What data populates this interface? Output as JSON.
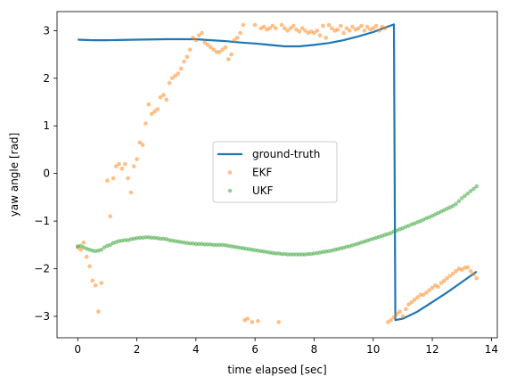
{
  "chart_data": {
    "type": "line",
    "xlabel": "time elapsed [sec]",
    "ylabel": "yaw angle [rad]",
    "xlim": [
      -0.7,
      14.2
    ],
    "ylim": [
      -3.45,
      3.4
    ],
    "xticks": [
      0,
      2,
      4,
      6,
      8,
      10,
      12,
      14
    ],
    "yticks": [
      -3,
      -2,
      -1,
      0,
      1,
      2,
      3
    ],
    "grid": false,
    "legend_position": "center",
    "series": [
      {
        "name": "ground-truth",
        "style": "line",
        "color": "#1f77b4",
        "points": [
          [
            0.0,
            2.81
          ],
          [
            0.5,
            2.8
          ],
          [
            1.0,
            2.8
          ],
          [
            2.0,
            2.81
          ],
          [
            3.0,
            2.82
          ],
          [
            4.0,
            2.82
          ],
          [
            4.5,
            2.8
          ],
          [
            5.0,
            2.78
          ],
          [
            5.5,
            2.75
          ],
          [
            6.0,
            2.73
          ],
          [
            6.5,
            2.7
          ],
          [
            7.0,
            2.67
          ],
          [
            7.5,
            2.67
          ],
          [
            8.0,
            2.7
          ],
          [
            8.5,
            2.74
          ],
          [
            9.0,
            2.8
          ],
          [
            9.5,
            2.88
          ],
          [
            10.0,
            2.97
          ],
          [
            10.3,
            3.04
          ],
          [
            10.7,
            3.13
          ],
          [
            10.75,
            -3.08
          ],
          [
            11.0,
            -3.05
          ],
          [
            11.5,
            -2.9
          ],
          [
            12.0,
            -2.7
          ],
          [
            12.5,
            -2.5
          ],
          [
            13.0,
            -2.28
          ],
          [
            13.5,
            -2.06
          ]
        ]
      },
      {
        "name": "EKF",
        "style": "markers",
        "color": "#ff7f0e",
        "points": [
          [
            0.0,
            -1.55
          ],
          [
            0.1,
            -1.6
          ],
          [
            0.2,
            -1.45
          ],
          [
            0.3,
            -1.75
          ],
          [
            0.4,
            -1.95
          ],
          [
            0.5,
            -2.25
          ],
          [
            0.6,
            -2.35
          ],
          [
            0.7,
            -2.9
          ],
          [
            0.8,
            -2.3
          ],
          [
            1.0,
            -0.15
          ],
          [
            1.1,
            -0.9
          ],
          [
            1.2,
            -0.1
          ],
          [
            1.3,
            0.15
          ],
          [
            1.4,
            0.2
          ],
          [
            1.5,
            0.1
          ],
          [
            1.6,
            0.2
          ],
          [
            1.7,
            -0.1
          ],
          [
            1.8,
            -0.4
          ],
          [
            1.9,
            0.15
          ],
          [
            2.0,
            0.3
          ],
          [
            2.1,
            0.65
          ],
          [
            2.2,
            0.6
          ],
          [
            2.3,
            1.05
          ],
          [
            2.4,
            1.45
          ],
          [
            2.5,
            1.25
          ],
          [
            2.6,
            1.3
          ],
          [
            2.7,
            1.35
          ],
          [
            2.8,
            1.6
          ],
          [
            2.9,
            1.65
          ],
          [
            3.0,
            1.55
          ],
          [
            3.1,
            1.9
          ],
          [
            3.2,
            2.0
          ],
          [
            3.3,
            2.05
          ],
          [
            3.4,
            2.1
          ],
          [
            3.5,
            2.2
          ],
          [
            3.6,
            2.35
          ],
          [
            3.7,
            2.45
          ],
          [
            3.8,
            2.6
          ],
          [
            3.9,
            2.85
          ],
          [
            4.0,
            2.8
          ],
          [
            4.1,
            2.9
          ],
          [
            4.2,
            2.95
          ],
          [
            4.3,
            2.75
          ],
          [
            4.4,
            2.7
          ],
          [
            4.5,
            2.65
          ],
          [
            4.6,
            2.6
          ],
          [
            4.7,
            2.55
          ],
          [
            4.8,
            2.55
          ],
          [
            4.9,
            2.6
          ],
          [
            5.0,
            2.65
          ],
          [
            5.1,
            2.4
          ],
          [
            5.2,
            2.5
          ],
          [
            5.3,
            2.8
          ],
          [
            5.4,
            2.85
          ],
          [
            5.5,
            2.95
          ],
          [
            5.6,
            3.12
          ],
          [
            5.65,
            -3.08
          ],
          [
            5.75,
            -3.05
          ],
          [
            5.9,
            -3.12
          ],
          [
            6.0,
            3.12
          ],
          [
            6.1,
            -3.1
          ],
          [
            6.2,
            3.05
          ],
          [
            6.3,
            3.08
          ],
          [
            6.4,
            3.02
          ],
          [
            6.5,
            3.05
          ],
          [
            6.6,
            3.1
          ],
          [
            6.7,
            3.05
          ],
          [
            6.8,
            -3.12
          ],
          [
            6.9,
            3.12
          ],
          [
            7.0,
            3.05
          ],
          [
            7.1,
            3.0
          ],
          [
            7.2,
            3.05
          ],
          [
            7.3,
            3.1
          ],
          [
            7.4,
            3.02
          ],
          [
            7.5,
            2.98
          ],
          [
            7.6,
            3.05
          ],
          [
            7.7,
            3.0
          ],
          [
            7.8,
            2.95
          ],
          [
            7.9,
            2.98
          ],
          [
            8.0,
            2.95
          ],
          [
            8.1,
            3.0
          ],
          [
            8.2,
            2.9
          ],
          [
            8.3,
            3.1
          ],
          [
            8.4,
            2.85
          ],
          [
            8.5,
            3.12
          ],
          [
            8.6,
            3.05
          ],
          [
            8.7,
            3.0
          ],
          [
            8.8,
            3.02
          ],
          [
            8.9,
            3.1
          ],
          [
            9.0,
            2.95
          ],
          [
            9.1,
            3.05
          ],
          [
            9.2,
            3.0
          ],
          [
            9.3,
            3.08
          ],
          [
            9.4,
            3.02
          ],
          [
            9.5,
            3.05
          ],
          [
            9.6,
            3.1
          ],
          [
            9.7,
            3.0
          ],
          [
            9.8,
            3.08
          ],
          [
            9.9,
            3.02
          ],
          [
            10.0,
            3.05
          ],
          [
            10.1,
            3.1
          ],
          [
            10.2,
            3.0
          ],
          [
            10.3,
            3.08
          ],
          [
            10.4,
            3.05
          ],
          [
            10.5,
            -3.12
          ],
          [
            10.6,
            -3.08
          ],
          [
            10.7,
            -3.02
          ],
          [
            10.8,
            -2.95
          ],
          [
            10.9,
            -2.9
          ],
          [
            11.0,
            -3.0
          ],
          [
            11.1,
            -2.85
          ],
          [
            11.2,
            -2.75
          ],
          [
            11.3,
            -2.7
          ],
          [
            11.4,
            -2.65
          ],
          [
            11.5,
            -2.6
          ],
          [
            11.6,
            -2.55
          ],
          [
            11.7,
            -2.55
          ],
          [
            11.8,
            -2.5
          ],
          [
            11.9,
            -2.45
          ],
          [
            12.0,
            -2.4
          ],
          [
            12.1,
            -2.35
          ],
          [
            12.2,
            -2.38
          ],
          [
            12.3,
            -2.3
          ],
          [
            12.4,
            -2.25
          ],
          [
            12.5,
            -2.2
          ],
          [
            12.6,
            -2.15
          ],
          [
            12.7,
            -2.1
          ],
          [
            12.8,
            -2.05
          ],
          [
            12.9,
            -2.0
          ],
          [
            13.0,
            -2.02
          ],
          [
            13.1,
            -1.98
          ],
          [
            13.2,
            -1.97
          ],
          [
            13.3,
            -2.05
          ],
          [
            13.4,
            -2.12
          ],
          [
            13.5,
            -2.2
          ]
        ]
      },
      {
        "name": "UKF",
        "style": "markers",
        "color": "#2ca02c",
        "points": [
          [
            0.0,
            -1.53
          ],
          [
            0.1,
            -1.52
          ],
          [
            0.2,
            -1.55
          ],
          [
            0.3,
            -1.58
          ],
          [
            0.4,
            -1.6
          ],
          [
            0.5,
            -1.62
          ],
          [
            0.6,
            -1.63
          ],
          [
            0.7,
            -1.62
          ],
          [
            0.8,
            -1.6
          ],
          [
            0.9,
            -1.55
          ],
          [
            1.0,
            -1.52
          ],
          [
            1.1,
            -1.5
          ],
          [
            1.2,
            -1.46
          ],
          [
            1.3,
            -1.44
          ],
          [
            1.4,
            -1.42
          ],
          [
            1.5,
            -1.41
          ],
          [
            1.6,
            -1.4
          ],
          [
            1.7,
            -1.4
          ],
          [
            1.8,
            -1.38
          ],
          [
            1.9,
            -1.37
          ],
          [
            2.0,
            -1.36
          ],
          [
            2.1,
            -1.35
          ],
          [
            2.2,
            -1.35
          ],
          [
            2.3,
            -1.34
          ],
          [
            2.4,
            -1.34
          ],
          [
            2.5,
            -1.35
          ],
          [
            2.6,
            -1.35
          ],
          [
            2.7,
            -1.36
          ],
          [
            2.8,
            -1.37
          ],
          [
            2.9,
            -1.37
          ],
          [
            3.0,
            -1.38
          ],
          [
            3.1,
            -1.4
          ],
          [
            3.2,
            -1.41
          ],
          [
            3.3,
            -1.42
          ],
          [
            3.4,
            -1.43
          ],
          [
            3.5,
            -1.44
          ],
          [
            3.6,
            -1.45
          ],
          [
            3.7,
            -1.46
          ],
          [
            3.8,
            -1.47
          ],
          [
            3.9,
            -1.47
          ],
          [
            4.0,
            -1.48
          ],
          [
            4.1,
            -1.48
          ],
          [
            4.2,
            -1.48
          ],
          [
            4.3,
            -1.49
          ],
          [
            4.4,
            -1.49
          ],
          [
            4.5,
            -1.49
          ],
          [
            4.6,
            -1.5
          ],
          [
            4.7,
            -1.5
          ],
          [
            4.8,
            -1.5
          ],
          [
            4.9,
            -1.5
          ],
          [
            5.0,
            -1.51
          ],
          [
            5.1,
            -1.52
          ],
          [
            5.2,
            -1.53
          ],
          [
            5.3,
            -1.54
          ],
          [
            5.4,
            -1.55
          ],
          [
            5.5,
            -1.56
          ],
          [
            5.6,
            -1.57
          ],
          [
            5.7,
            -1.58
          ],
          [
            5.8,
            -1.59
          ],
          [
            5.9,
            -1.6
          ],
          [
            6.0,
            -1.61
          ],
          [
            6.1,
            -1.62
          ],
          [
            6.2,
            -1.63
          ],
          [
            6.3,
            -1.64
          ],
          [
            6.4,
            -1.65
          ],
          [
            6.5,
            -1.66
          ],
          [
            6.6,
            -1.67
          ],
          [
            6.7,
            -1.68
          ],
          [
            6.8,
            -1.68
          ],
          [
            6.9,
            -1.69
          ],
          [
            7.0,
            -1.69
          ],
          [
            7.1,
            -1.7
          ],
          [
            7.2,
            -1.7
          ],
          [
            7.3,
            -1.7
          ],
          [
            7.4,
            -1.7
          ],
          [
            7.5,
            -1.7
          ],
          [
            7.6,
            -1.7
          ],
          [
            7.7,
            -1.7
          ],
          [
            7.8,
            -1.69
          ],
          [
            7.9,
            -1.69
          ],
          [
            8.0,
            -1.68
          ],
          [
            8.1,
            -1.67
          ],
          [
            8.2,
            -1.66
          ],
          [
            8.3,
            -1.65
          ],
          [
            8.4,
            -1.64
          ],
          [
            8.5,
            -1.63
          ],
          [
            8.6,
            -1.62
          ],
          [
            8.7,
            -1.6
          ],
          [
            8.8,
            -1.59
          ],
          [
            8.9,
            -1.57
          ],
          [
            9.0,
            -1.56
          ],
          [
            9.1,
            -1.54
          ],
          [
            9.2,
            -1.53
          ],
          [
            9.3,
            -1.51
          ],
          [
            9.4,
            -1.49
          ],
          [
            9.5,
            -1.47
          ],
          [
            9.6,
            -1.45
          ],
          [
            9.7,
            -1.43
          ],
          [
            9.8,
            -1.41
          ],
          [
            9.9,
            -1.39
          ],
          [
            10.0,
            -1.37
          ],
          [
            10.1,
            -1.35
          ],
          [
            10.2,
            -1.33
          ],
          [
            10.3,
            -1.31
          ],
          [
            10.4,
            -1.29
          ],
          [
            10.5,
            -1.27
          ],
          [
            10.6,
            -1.25
          ],
          [
            10.7,
            -1.22
          ],
          [
            10.8,
            -1.2
          ],
          [
            10.9,
            -1.17
          ],
          [
            11.0,
            -1.15
          ],
          [
            11.1,
            -1.12
          ],
          [
            11.2,
            -1.1
          ],
          [
            11.3,
            -1.07
          ],
          [
            11.4,
            -1.05
          ],
          [
            11.5,
            -1.02
          ],
          [
            11.6,
            -1.0
          ],
          [
            11.7,
            -0.97
          ],
          [
            11.8,
            -0.94
          ],
          [
            11.9,
            -0.92
          ],
          [
            12.0,
            -0.89
          ],
          [
            12.1,
            -0.86
          ],
          [
            12.2,
            -0.83
          ],
          [
            12.3,
            -0.8
          ],
          [
            12.4,
            -0.77
          ],
          [
            12.5,
            -0.74
          ],
          [
            12.6,
            -0.71
          ],
          [
            12.7,
            -0.68
          ],
          [
            12.8,
            -0.64
          ],
          [
            12.9,
            -0.58
          ],
          [
            13.0,
            -0.52
          ],
          [
            13.1,
            -0.47
          ],
          [
            13.2,
            -0.42
          ],
          [
            13.3,
            -0.37
          ],
          [
            13.4,
            -0.32
          ],
          [
            13.5,
            -0.27
          ]
        ]
      }
    ]
  }
}
